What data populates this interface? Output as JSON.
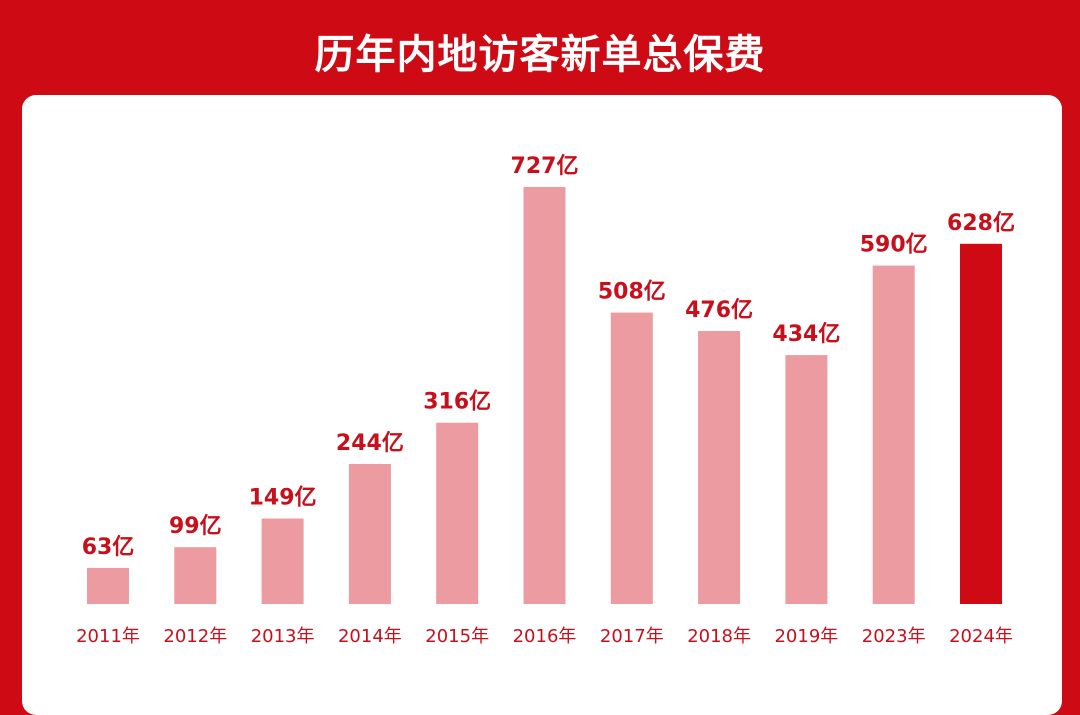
{
  "title": "历年内地访客新单总保费",
  "chart_data": {
    "type": "bar",
    "title": "历年内地访客新单总保费",
    "categories": [
      "2011年",
      "2012年",
      "2013年",
      "2014年",
      "2015年",
      "2016年",
      "2017年",
      "2018年",
      "2019年",
      "2023年",
      "2024年"
    ],
    "values": [
      63,
      99,
      149,
      244,
      316,
      727,
      508,
      476,
      434,
      590,
      628
    ],
    "labels": [
      "63亿",
      "99亿",
      "149亿",
      "244亿",
      "316亿",
      "727亿",
      "508亿",
      "476亿",
      "434亿",
      "590亿",
      "628亿"
    ],
    "unit": "亿",
    "highlight_index": 10,
    "ylim": [
      0,
      727
    ],
    "grid": false,
    "colors": {
      "bar": "#ec9ba0",
      "highlight": "#cf0a14",
      "background": "#ce0a14",
      "panel": "#ffffff",
      "text": "#c8101c"
    }
  }
}
